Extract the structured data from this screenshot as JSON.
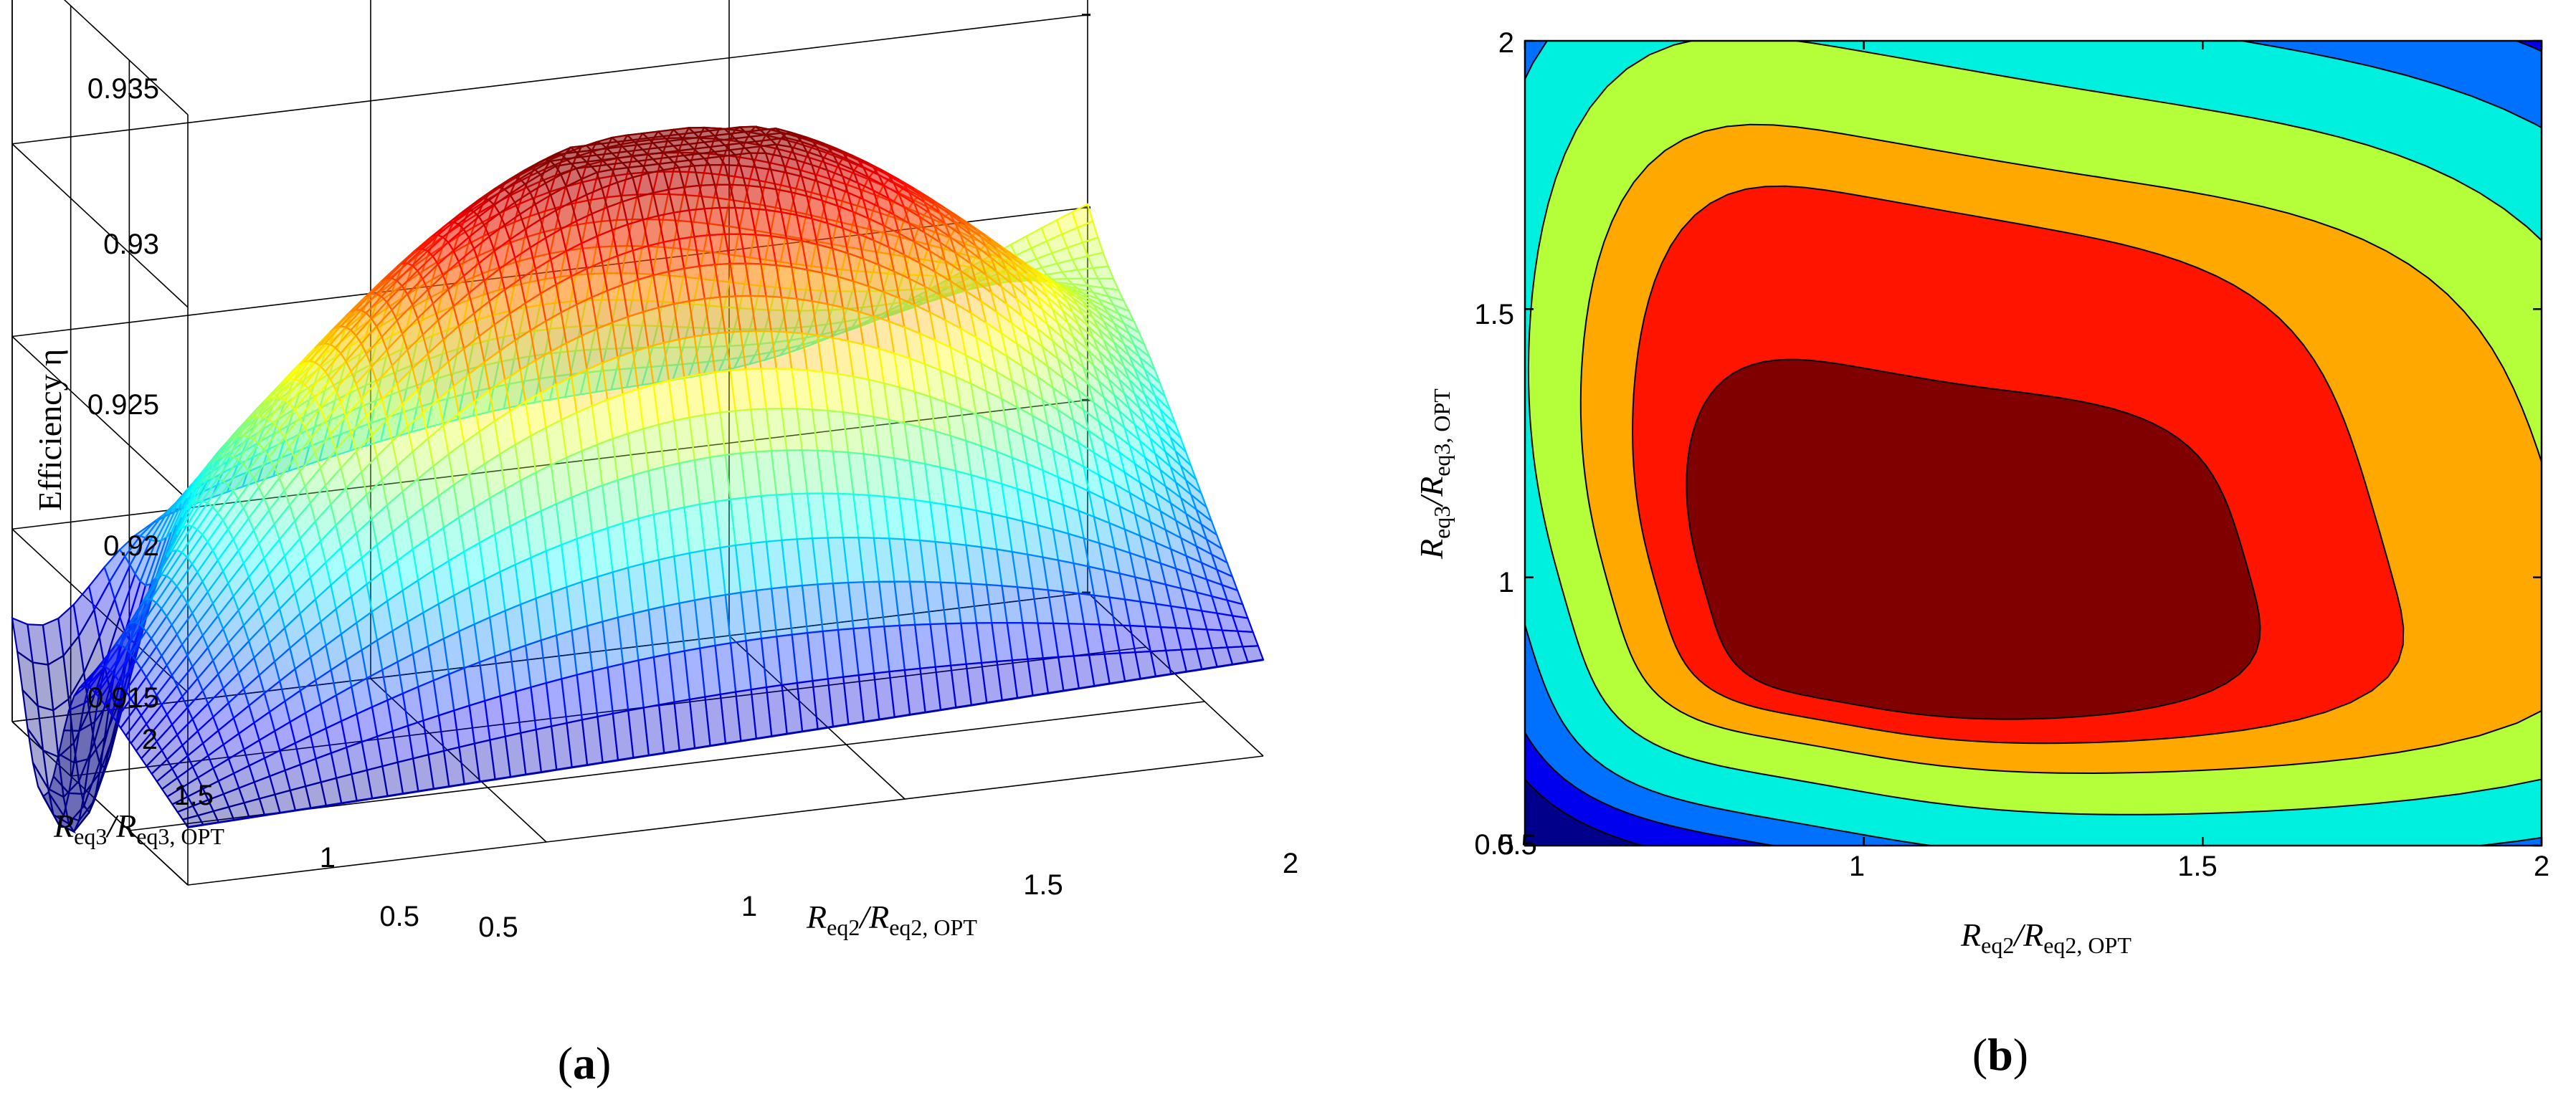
{
  "chart_data": [
    {
      "type": "surface3d",
      "panel_label": "a",
      "title": "",
      "xlabel": {
        "main": "R",
        "sub": "eq2",
        "mid": "/R",
        "sub2": "eq2, OPT"
      },
      "ylabel": {
        "main": "R",
        "sub": "eq3",
        "mid": "/R",
        "sub2": "eq3, OPT"
      },
      "zlabel": "Efficiency η",
      "x_ticks": [
        "0.5",
        "1",
        "1.5",
        "2"
      ],
      "y_ticks": [
        "0.5",
        "1",
        "1.5",
        "2"
      ],
      "z_ticks": [
        "0.915",
        "0.92",
        "0.925",
        "0.93",
        "0.935"
      ],
      "xlim": [
        0.5,
        2
      ],
      "ylim": [
        0.5,
        2
      ],
      "zlim": [
        0.915,
        0.935
      ],
      "peak": {
        "x": 1.0,
        "y": 1.0,
        "z": 0.93
      },
      "corner_values": {
        "x0.5_y0.5": 0.9165,
        "x2_y0.5": 0.9175,
        "x0.5_y2": 0.919,
        "x2_y2": 0.9255
      },
      "colormap": "jet",
      "grid": true
    },
    {
      "type": "contour",
      "panel_label": "b",
      "title": "",
      "xlabel": {
        "main": "R",
        "sub": "eq2",
        "mid": "/R",
        "sub2": "eq2, OPT"
      },
      "ylabel": {
        "main": "R",
        "sub": "eq3",
        "mid": "/R",
        "sub2": "eq3, OPT"
      },
      "x_ticks": [
        "0.5",
        "1",
        "1.5",
        "2"
      ],
      "y_ticks": [
        "0.5",
        "1",
        "1.5",
        "2"
      ],
      "xlim": [
        0.5,
        2
      ],
      "ylim": [
        0.5,
        2
      ],
      "peak": {
        "x": 1.0,
        "y": 1.0
      },
      "levels": 8,
      "colors": [
        "#00008b",
        "#0000ee",
        "#0070ff",
        "#00f0e0",
        "#b4ff3a",
        "#ffa800",
        "#ff1400",
        "#800000"
      ],
      "colormap": "jet"
    }
  ]
}
